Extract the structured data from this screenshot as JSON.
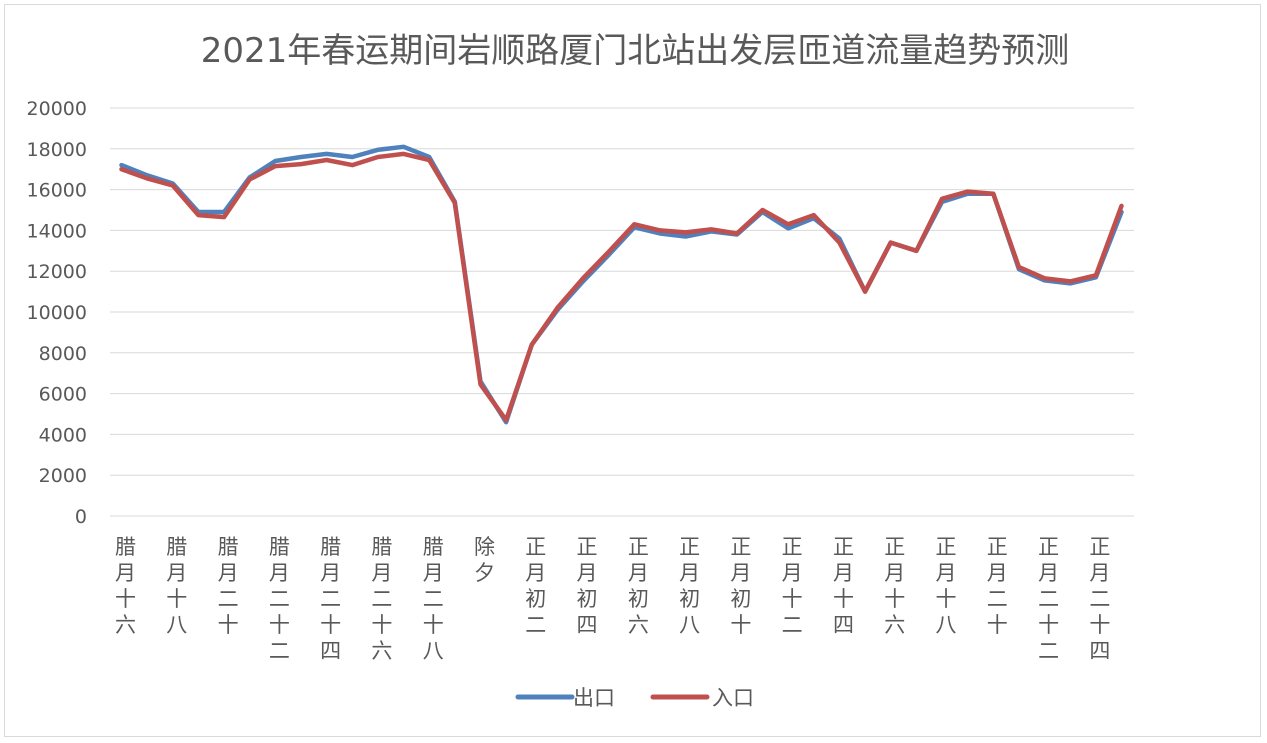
{
  "chart_data": {
    "type": "line",
    "title": "2021年春运期间岩顺路厦门北站出发层匝道流量趋势预测",
    "xlabel": "",
    "ylabel": "",
    "ylim": [
      0,
      20000
    ],
    "yticks": [
      0,
      2000,
      4000,
      6000,
      8000,
      10000,
      12000,
      14000,
      16000,
      18000,
      20000
    ],
    "grid": true,
    "legend_position": "bottom",
    "category_labels": [
      "腊月十六",
      "腊月十八",
      "腊月二十",
      "腊月二十二",
      "腊月二十四",
      "腊月二十六",
      "腊月二十八",
      "除夕",
      "正月初二",
      "正月初四",
      "正月初六",
      "正月初八",
      "正月初十",
      "正月十二",
      "正月十四",
      "正月十六",
      "正月十八",
      "正月二十",
      "正月二十二",
      "正月二十四"
    ],
    "series": [
      {
        "name": "出口",
        "color": "#4f81bd",
        "values": [
          17200,
          16700,
          16300,
          14900,
          14900,
          16600,
          17400,
          17600,
          17750,
          17600,
          17950,
          18100,
          17600,
          15400,
          6600,
          4600,
          8400,
          10100,
          11500,
          12800,
          14150,
          13850,
          13700,
          13950,
          13800,
          14900,
          14100,
          14600,
          13600,
          11000,
          13400,
          13000,
          15400,
          15800,
          15800,
          12100,
          11550,
          11400,
          11700,
          14900
        ]
      },
      {
        "name": "入口",
        "color": "#c0504d",
        "values": [
          17000,
          16550,
          16200,
          14750,
          14650,
          16500,
          17150,
          17250,
          17450,
          17200,
          17600,
          17750,
          17450,
          15350,
          6450,
          4700,
          8400,
          10200,
          11650,
          12950,
          14300,
          14000,
          13900,
          14050,
          13850,
          15000,
          14300,
          14750,
          13400,
          11000,
          13400,
          13000,
          15550,
          15900,
          15800,
          12200,
          11650,
          11500,
          11800,
          15200
        ]
      }
    ]
  }
}
